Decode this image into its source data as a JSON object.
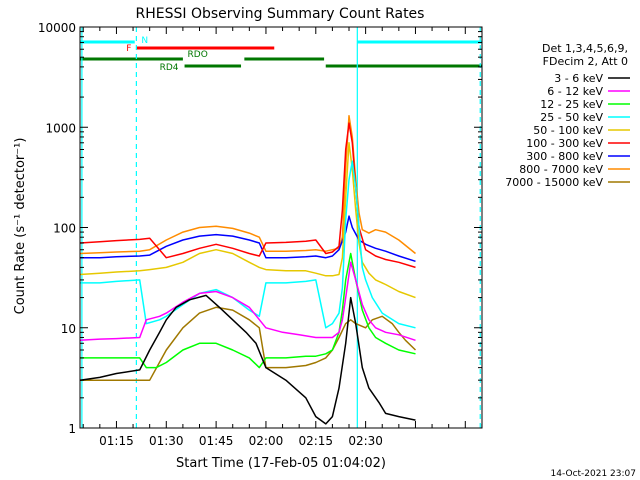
{
  "chart_data": {
    "type": "line",
    "title": "RHESSI Observing Summary Count Rates",
    "xlabel": "Start Time (17-Feb-05 01:04:02)",
    "ylabel": "Count Rate (s⁻¹ detector⁻¹)",
    "yscale": "log",
    "ylim": [
      1,
      10000
    ],
    "xlim_min": [
      4.03,
      125.03
    ],
    "x_tick_labels": [
      "01:15",
      "01:30",
      "01:45",
      "02:00",
      "02:15",
      "02:30"
    ],
    "x_tick_min": [
      15,
      30,
      45,
      60,
      75,
      90
    ],
    "y_tick_labels": [
      "1",
      "10",
      "100",
      "1000",
      "10000"
    ],
    "y_ticks": [
      1,
      10,
      100,
      1000,
      10000
    ],
    "legend_header": [
      "Det 1,3,4,5,6,9,",
      "FDecim 2, Att 0"
    ],
    "legend_position": "right, outside plot",
    "timestamp": "14-Oct-2021 23:07",
    "series": [
      {
        "name": "3 - 6 keV",
        "color": "#000000",
        "x": [
          4,
          10,
          15,
          22,
          25,
          28,
          30,
          33,
          37,
          42,
          46,
          50,
          54,
          57,
          60,
          66,
          72,
          75,
          78,
          80,
          82,
          84,
          85.5,
          87,
          89,
          91,
          94,
          96,
          100,
          105
        ],
        "y": [
          3,
          3.2,
          3.5,
          3.8,
          6,
          9,
          12,
          16,
          19,
          21,
          16,
          12,
          9,
          7,
          4,
          3,
          2,
          1.3,
          1.1,
          1.3,
          2.5,
          7,
          20,
          11,
          4,
          2.5,
          1.8,
          1.4,
          1.3,
          1.2
        ]
      },
      {
        "name": "6 - 12 keV",
        "color": "#ff00ff",
        "x": [
          4,
          10,
          15,
          22,
          24,
          28,
          30,
          35,
          40,
          45,
          50,
          55,
          60,
          65,
          70,
          75,
          78,
          80,
          82,
          83,
          84,
          85.5,
          87,
          89,
          91,
          93,
          96,
          100,
          105
        ],
        "y": [
          7.5,
          7.7,
          7.8,
          8,
          12,
          13,
          14,
          18,
          22,
          23,
          20,
          16,
          10,
          9,
          8.5,
          8,
          8,
          8,
          9,
          12,
          20,
          45,
          30,
          17,
          12,
          10,
          9,
          8.5,
          7.5
        ]
      },
      {
        "name": "12 - 25 keV",
        "color": "#00ff00",
        "x": [
          4,
          10,
          15,
          22,
          24,
          27,
          30,
          35,
          40,
          45,
          50,
          55,
          58,
          60,
          66,
          72,
          75,
          78,
          80,
          82,
          83,
          84,
          85.5,
          87,
          89,
          91,
          93,
          96,
          100,
          105
        ],
        "y": [
          5,
          5,
          5,
          5,
          4,
          4,
          4.5,
          6,
          7,
          7,
          6,
          5,
          4,
          5,
          5,
          5.2,
          5.2,
          5.5,
          6,
          9,
          15,
          30,
          55,
          30,
          15,
          10,
          8,
          7,
          6,
          5.5
        ]
      },
      {
        "name": "25 - 50 keV",
        "color": "#00ffff",
        "x": [
          4,
          10,
          15,
          22,
          24,
          28,
          30,
          35,
          40,
          45,
          50,
          55,
          58,
          60,
          66,
          72,
          75,
          78,
          80,
          82,
          83,
          84,
          85,
          86,
          87,
          88,
          89,
          90,
          92,
          95,
          100,
          105
        ],
        "y": [
          28,
          28,
          29,
          30,
          11,
          12,
          13,
          17,
          22,
          24,
          20,
          15,
          13,
          28,
          28,
          29,
          30,
          10,
          11,
          14,
          25,
          120,
          300,
          460,
          250,
          100,
          40,
          30,
          20,
          14,
          11,
          10
        ]
      },
      {
        "name": "50 - 100 keV",
        "color": "#e6c800",
        "x": [
          4,
          10,
          15,
          22,
          25,
          30,
          35,
          40,
          45,
          50,
          55,
          58,
          60,
          66,
          72,
          75,
          78,
          80,
          82,
          83,
          84,
          85,
          86,
          87,
          88,
          89,
          91,
          93,
          96,
          100,
          105
        ],
        "y": [
          34,
          35,
          36,
          37,
          38,
          40,
          45,
          55,
          60,
          55,
          45,
          40,
          38,
          37,
          37,
          35,
          33,
          33,
          34,
          50,
          200,
          700,
          380,
          150,
          70,
          45,
          35,
          30,
          27,
          23,
          20
        ]
      },
      {
        "name": "100 - 300 keV",
        "color": "#ff0000",
        "x": [
          4,
          10,
          15,
          22,
          25,
          30,
          35,
          40,
          45,
          50,
          55,
          58,
          60,
          66,
          72,
          75,
          78,
          80,
          82,
          83,
          84,
          85,
          86,
          87,
          88,
          90,
          93,
          96,
          100,
          105
        ],
        "y": [
          70,
          72,
          74,
          76,
          78,
          50,
          55,
          62,
          68,
          62,
          55,
          52,
          70,
          71,
          73,
          75,
          55,
          57,
          65,
          150,
          600,
          1100,
          700,
          250,
          100,
          60,
          52,
          48,
          45,
          40
        ]
      },
      {
        "name": "300 - 800 keV",
        "color": "#0000ff",
        "x": [
          4,
          10,
          15,
          22,
          25,
          30,
          35,
          40,
          45,
          50,
          55,
          58,
          60,
          66,
          72,
          75,
          78,
          80,
          82,
          84,
          85,
          86,
          88,
          90,
          93,
          96,
          100,
          105
        ],
        "y": [
          50,
          50,
          51,
          52,
          53,
          65,
          75,
          82,
          85,
          82,
          75,
          70,
          50,
          50,
          51,
          52,
          50,
          52,
          60,
          90,
          130,
          100,
          75,
          68,
          62,
          58,
          52,
          46
        ]
      },
      {
        "name": "800 - 7000 keV",
        "color": "#ff8c00",
        "x": [
          4,
          10,
          15,
          22,
          25,
          30,
          35,
          40,
          45,
          50,
          55,
          58,
          60,
          66,
          72,
          75,
          78,
          80,
          82,
          83,
          84,
          85,
          86,
          87,
          88,
          89,
          91,
          93,
          96,
          100,
          105
        ],
        "y": [
          55,
          56,
          57,
          58,
          60,
          75,
          90,
          100,
          103,
          98,
          88,
          80,
          58,
          58,
          59,
          60,
          58,
          60,
          62,
          80,
          400,
          1300,
          800,
          300,
          140,
          95,
          88,
          95,
          90,
          75,
          55
        ]
      },
      {
        "name": "7000 - 15000 keV",
        "color": "#a07800",
        "x": [
          4,
          10,
          15,
          22,
          25,
          30,
          35,
          40,
          45,
          50,
          55,
          58,
          60,
          66,
          72,
          75,
          78,
          80,
          82,
          84,
          85.5,
          87,
          90,
          92,
          95,
          98,
          100,
          102,
          105
        ],
        "y": [
          3,
          3,
          3,
          3,
          3,
          6,
          10,
          14,
          16,
          15,
          12,
          10,
          4,
          4,
          4.2,
          4.5,
          5,
          6,
          8,
          11,
          12,
          11,
          10,
          12,
          13,
          11,
          9,
          7.5,
          6
        ]
      }
    ],
    "attenuator_bars": [
      {
        "label": "N",
        "color": "#00ffff",
        "segments_min": [
          [
            4,
            20.5
          ],
          [
            87.5,
            125
          ]
        ]
      },
      {
        "label": "F",
        "color": "#ff0000",
        "segments_min": [
          [
            21,
            62.5
          ]
        ]
      },
      {
        "label": "RDO",
        "color": "#007700",
        "segments_min": [
          [
            4,
            35
          ],
          [
            53.5,
            77.5
          ]
        ]
      },
      {
        "label": "RD4",
        "color": "#007700",
        "segments_min": [
          [
            35.5,
            52.5
          ],
          [
            78,
            125
          ]
        ]
      }
    ],
    "vlines_min": [
      {
        "x": 4.6,
        "color": "#00ffff",
        "style": "solid"
      },
      {
        "x": 21.0,
        "color": "#00ffff",
        "style": "dashed"
      },
      {
        "x": 87.5,
        "color": "#00ffff",
        "style": "solid"
      },
      {
        "x": 124.5,
        "color": "#00ffff",
        "style": "dashed"
      }
    ]
  }
}
